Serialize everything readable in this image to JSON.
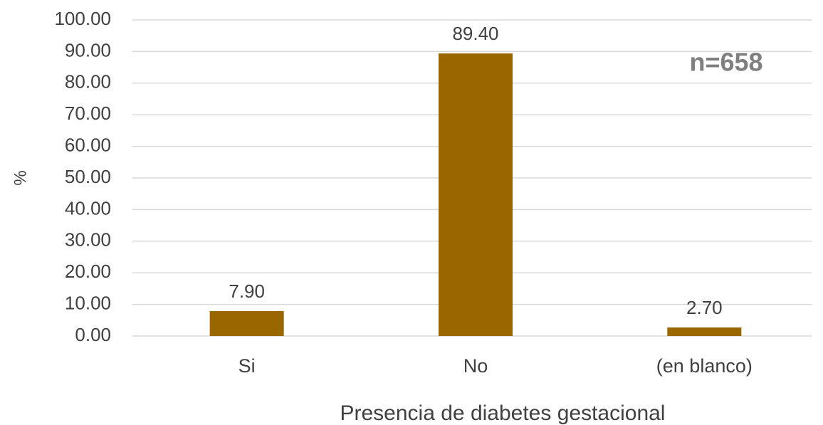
{
  "chart_data": {
    "type": "bar",
    "categories": [
      "Si",
      "No",
      "(en blanco)"
    ],
    "values": [
      7.9,
      89.4,
      2.7
    ],
    "value_labels": [
      "7.90",
      "89.40",
      "2.70"
    ],
    "color": "#996600",
    "ylim": [
      0,
      100
    ],
    "yticks": [
      {
        "value": 0,
        "label": "0.00"
      },
      {
        "value": 10,
        "label": "10.00"
      },
      {
        "value": 20,
        "label": "20.00"
      },
      {
        "value": 30,
        "label": "30.00"
      },
      {
        "value": 40,
        "label": "40.00"
      },
      {
        "value": 50,
        "label": "50.00"
      },
      {
        "value": 60,
        "label": "60.00"
      },
      {
        "value": 70,
        "label": "70.00"
      },
      {
        "value": 80,
        "label": "80.00"
      },
      {
        "value": 90,
        "label": "90.00"
      },
      {
        "value": 100,
        "label": "100.00"
      }
    ],
    "ylabel": "%",
    "xlabel": "Presencia de diabetes gestacional",
    "annotation": "n=658",
    "grid": true
  }
}
